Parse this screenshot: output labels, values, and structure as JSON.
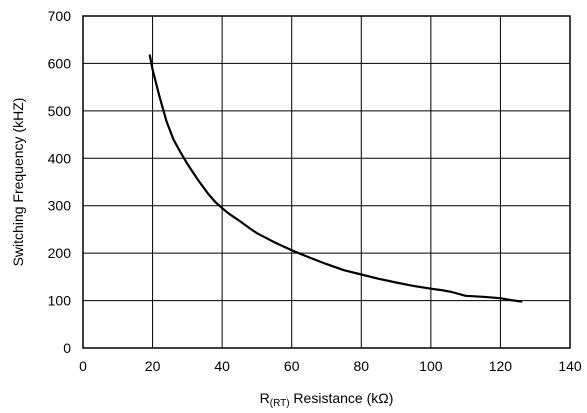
{
  "chart_data": {
    "type": "line",
    "xlabel": {
      "main": "R",
      "sub": "(RT)",
      "rest": " Resistance (kΩ)"
    },
    "ylabel": "Switching Frequency (kHZ)",
    "xlim": [
      0,
      140
    ],
    "ylim": [
      0,
      700
    ],
    "xticks": [
      0,
      20,
      40,
      60,
      80,
      100,
      120,
      140
    ],
    "yticks": [
      0,
      100,
      200,
      300,
      400,
      500,
      600,
      700
    ],
    "grid": true,
    "colors": {
      "line": "#000000",
      "grid": "#000000"
    },
    "series": [
      {
        "x": [
          19.2,
          20,
          22,
          24,
          26,
          28,
          30,
          33,
          36,
          38,
          40,
          42,
          45,
          48,
          50,
          55,
          60,
          65,
          70,
          75,
          80,
          85,
          90,
          95,
          100,
          103,
          106,
          110,
          115,
          120,
          123,
          126
        ],
        "y": [
          617,
          587,
          530,
          478,
          440,
          413,
          388,
          355,
          325,
          308,
          295,
          283,
          268,
          252,
          242,
          223,
          206,
          191,
          177,
          164,
          155,
          146,
          138,
          131,
          125,
          122,
          118,
          110,
          108,
          105,
          101,
          98
        ]
      }
    ]
  }
}
